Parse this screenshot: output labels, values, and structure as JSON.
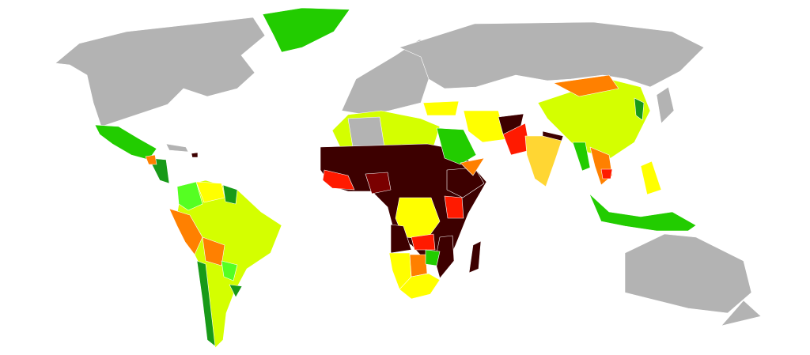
{
  "map": {
    "type": "world choropleth",
    "legend": "none",
    "palette": {
      "no_data": "#b3b3b3",
      "green": "#22cc00",
      "dark_green": "#189a18",
      "light_green": "#55ff22",
      "yellow_green": "#d4ff00",
      "yellow": "#ffff00",
      "gold": "#ffd633",
      "orange": "#ff8000",
      "red": "#ff1a00",
      "dark_red": "#7a0000",
      "darkest": "#3d0000"
    },
    "regions": {
      "north-america-north": "no_data",
      "greenland": "green",
      "mexico": "green",
      "central-america": "dark_green",
      "guatemala": "orange",
      "cuba": "no_data",
      "haiti": "darkest",
      "south-america-base": "yellow_green",
      "colombia": "light_green",
      "venezuela": "yellow",
      "guyana": "dark_green",
      "peru": "orange",
      "bolivia": "orange",
      "paraguay": "light_green",
      "chile": "dark_green",
      "uruguay": "dark_green",
      "europe": "no_data",
      "russia": "no_data",
      "north-africa": "yellow_green",
      "algeria": "no_data",
      "sahel": "darkest",
      "west-africa": "red",
      "nigeria": "dark_red",
      "ethiopia": "darkest",
      "kenya": "red",
      "dr-congo": "yellow",
      "angola": "darkest",
      "zambia": "red",
      "mozambique": "darkest",
      "namibia": "yellow",
      "botswana": "orange",
      "zimbabwe": "green",
      "south-africa": "yellow",
      "madagascar": "darkest",
      "turkey": "yellow",
      "saudi-arabia": "green",
      "iran": "yellow",
      "yemen": "orange",
      "afghanistan": "darkest",
      "pakistan": "red",
      "india": "gold",
      "nepal": "darkest",
      "china": "yellow_green",
      "mongolia": "orange",
      "myanmar": "green",
      "thailand": "orange",
      "cambodia": "red",
      "philippines": "yellow",
      "indonesia": "green",
      "korea": "dark_green",
      "japan": "no_data",
      "australia": "no_data",
      "new-zealand": "no_data"
    }
  }
}
